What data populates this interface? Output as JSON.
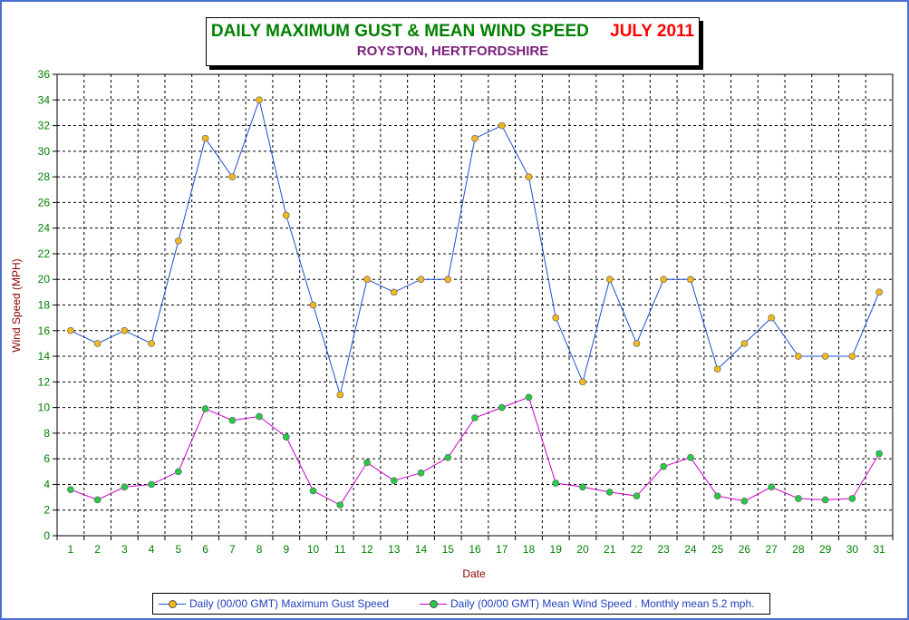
{
  "title": {
    "main": "DAILY MAXIMUM GUST & MEAN WIND SPEED",
    "period": "JULY 2011",
    "subtitle": "ROYSTON, HERTFORDSHIRE"
  },
  "colors": {
    "frame": "#4a6fd0",
    "gust_line": "#1f4fd0",
    "gust_marker": "#f2b81c",
    "mean_line": "#cc00cc",
    "mean_marker": "#22cc44",
    "axis_label": "#8b0000",
    "x_tick": "#008000"
  },
  "chart_data": {
    "type": "line",
    "xlabel": "Date",
    "ylabel": "Wind Speed (MPH)",
    "ylim": [
      0,
      36
    ],
    "ytick_step": 2,
    "grid": true,
    "legend_position": "bottom",
    "categories": [
      1,
      2,
      3,
      4,
      5,
      6,
      7,
      8,
      9,
      10,
      11,
      12,
      13,
      14,
      15,
      16,
      17,
      18,
      19,
      20,
      21,
      22,
      23,
      24,
      25,
      26,
      27,
      28,
      29,
      30,
      31
    ],
    "series": [
      {
        "name": "Daily (00/00 GMT) Maximum Gust Speed",
        "values": [
          16,
          15,
          16,
          15,
          23,
          31,
          28,
          34,
          25,
          18,
          11,
          20,
          19,
          20,
          20,
          31,
          32,
          28,
          17,
          12,
          20,
          15,
          20,
          20,
          13,
          15,
          17,
          14,
          14,
          14,
          19
        ]
      },
      {
        "name": "Daily (00/00 GMT) Mean Wind Speed . Monthly mean 5.2 mph.",
        "values": [
          3.6,
          2.8,
          3.8,
          4.0,
          5.0,
          9.9,
          9.0,
          9.3,
          7.7,
          3.5,
          2.4,
          5.7,
          4.3,
          4.9,
          6.1,
          9.2,
          10.0,
          10.8,
          4.1,
          3.8,
          3.4,
          3.1,
          5.4,
          6.1,
          3.1,
          2.7,
          3.8,
          2.9,
          2.8,
          2.9,
          6.4
        ]
      }
    ]
  }
}
